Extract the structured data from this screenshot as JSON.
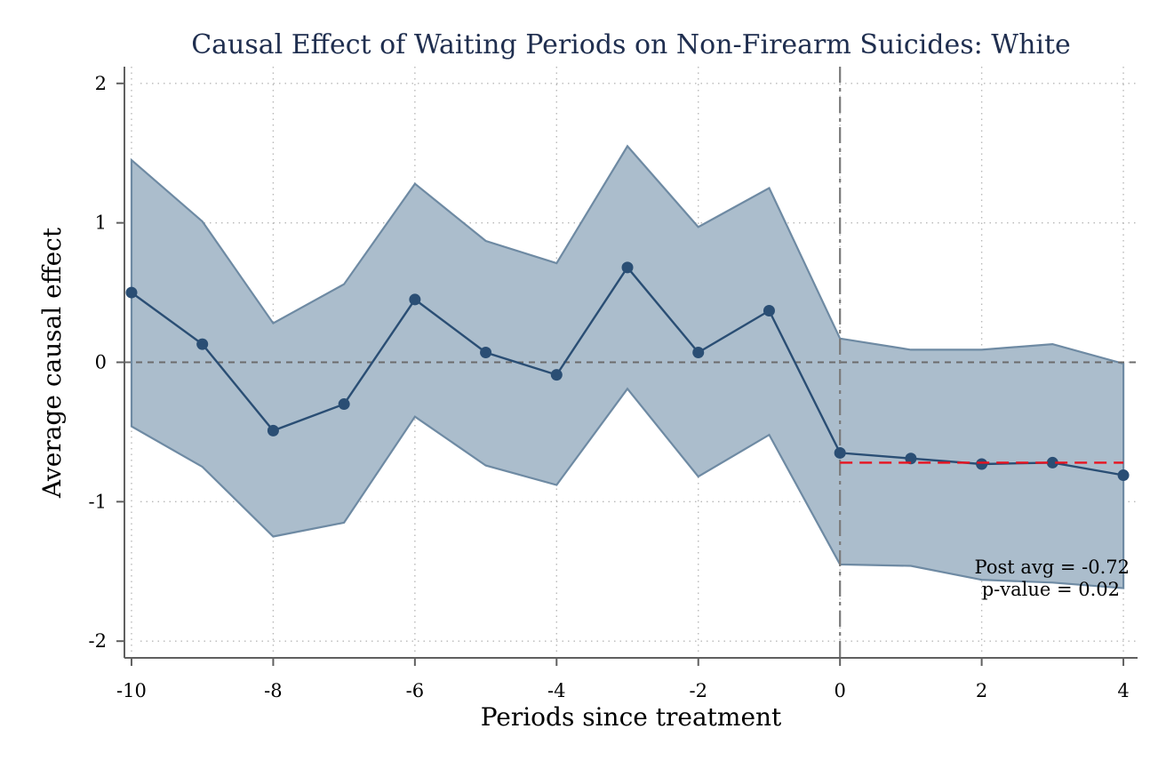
{
  "chart_data": {
    "type": "line",
    "title": "Causal Effect of Waiting Periods on Non-Firearm Suicides: White",
    "xlabel": "Periods since treatment",
    "ylabel": "Average causal effect",
    "x_ticks": [
      -10,
      -8,
      -6,
      -4,
      -2,
      0,
      2,
      4
    ],
    "y_ticks": [
      -2,
      -1,
      0,
      1,
      2
    ],
    "xlim": [
      -10.1,
      4.2
    ],
    "ylim": [
      -2.12,
      2.12
    ],
    "grid": true,
    "treatment_period": 0,
    "x": [
      -10,
      -9,
      -8,
      -7,
      -6,
      -5,
      -4,
      -3,
      -2,
      -1,
      0,
      1,
      2,
      3,
      4
    ],
    "series": [
      {
        "values": [
          0.5,
          0.13,
          -0.49,
          -0.3,
          0.45,
          0.07,
          -0.09,
          0.68,
          0.07,
          0.37,
          -0.65,
          -0.69,
          -0.73,
          -0.72,
          -0.81
        ],
        "ci_lower": [
          -0.46,
          -0.75,
          -1.25,
          -1.15,
          -0.39,
          -0.74,
          -0.88,
          -0.19,
          -0.82,
          -0.52,
          -1.45,
          -1.46,
          -1.56,
          -1.58,
          -1.62
        ],
        "ci_upper": [
          1.45,
          1.01,
          0.28,
          0.56,
          1.28,
          0.87,
          0.71,
          1.55,
          0.97,
          1.25,
          0.17,
          0.09,
          0.09,
          0.13,
          -0.01
        ]
      }
    ],
    "post_average": {
      "value": -0.72,
      "x_range": [
        0,
        4
      ]
    },
    "annotations": {
      "post_avg": "Post avg = -0.72",
      "p_value": "p-value = 0.02"
    },
    "colors": {
      "title": "#1f2e4f",
      "ci_fill": "#abbdcc",
      "ci_edge": "#6e8aa3",
      "estimate": "#2a4e74",
      "post_average": "#e8121e",
      "reference_lines": "#6c6c6c"
    }
  }
}
